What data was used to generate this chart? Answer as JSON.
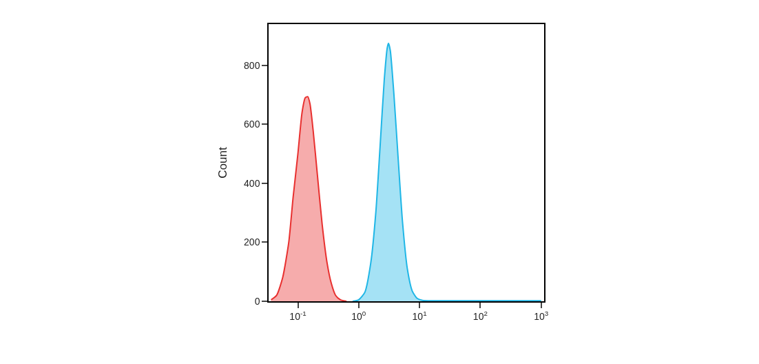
{
  "chart_data": {
    "type": "area",
    "ylabel": "Count",
    "log": "x",
    "xlim": [
      0.033,
      1120
    ],
    "ylim": [
      0,
      940
    ],
    "xticks": [
      {
        "value": 0.1,
        "label": "10$^{-1}$"
      },
      {
        "value": 1,
        "label": "10$^{0}$"
      },
      {
        "value": 10,
        "label": "10$^{1}$"
      },
      {
        "value": 100,
        "label": "10$^{2}$"
      },
      {
        "value": 1000,
        "label": "10$^{3}$"
      }
    ],
    "yticks": [
      0,
      200,
      400,
      600,
      800
    ],
    "series": [
      {
        "color": "#e8302f",
        "x": [
          0.0363,
          0.0447,
          0.0562,
          0.0708,
          0.0832,
          0.1,
          0.117,
          0.132,
          0.145,
          0.158,
          0.178,
          0.209,
          0.251,
          0.302,
          0.355,
          0.417,
          0.501,
          0.631
        ],
        "values": [
          5,
          20,
          80,
          200,
          350,
          500,
          640,
          690,
          694,
          670,
          580,
          430,
          260,
          130,
          60,
          20,
          5,
          0
        ]
      },
      {
        "color": "#1fb6e6",
        "x": [
          0.794,
          1,
          1.26,
          1.58,
          1.91,
          2.24,
          2.63,
          2.95,
          3.09,
          3.31,
          3.8,
          4.47,
          5.25,
          6.31,
          7.59,
          9.12,
          11.2,
          20,
          100,
          1000
        ],
        "values": [
          0,
          5,
          30,
          130,
          300,
          520,
          750,
          860,
          875,
          850,
          700,
          480,
          270,
          110,
          35,
          10,
          3,
          2,
          2,
          2
        ]
      }
    ]
  }
}
